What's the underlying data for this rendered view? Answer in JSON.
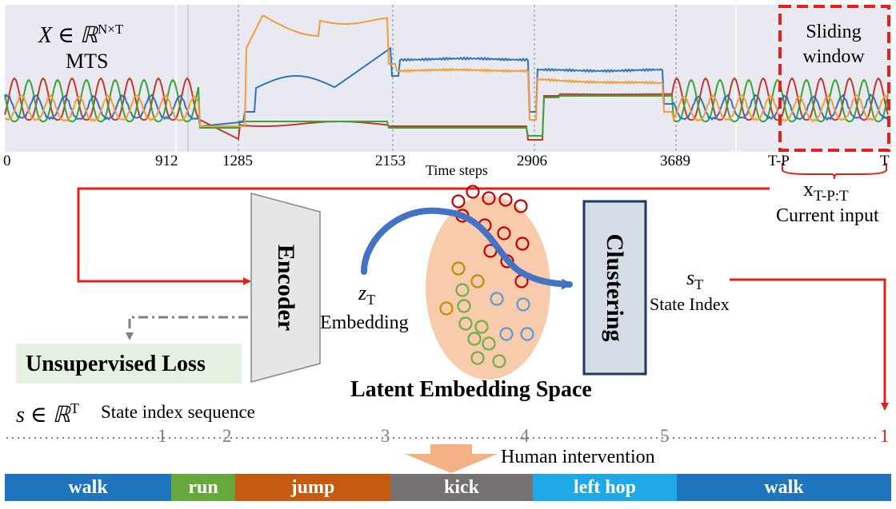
{
  "plot": {
    "math_label": "X ∈ ℝ",
    "math_sup": "N×T",
    "title": "MTS",
    "x_axis_label": "Time steps",
    "ticks": [
      "0",
      "912",
      "1285",
      "2153",
      "2906",
      "3689",
      "T-P",
      "T"
    ],
    "sliding_window": {
      "line1": "Sliding",
      "line2": "window"
    },
    "series_colors": {
      "blue": "#2e75b6",
      "orange": "#f39c3c",
      "red": "#c0392b",
      "green": "#3aa534"
    }
  },
  "current_input": {
    "symbol": "x",
    "subscript": "T-P:T",
    "caption": "Current input"
  },
  "encoder": {
    "label": "Encoder"
  },
  "embedding": {
    "symbol": "z",
    "subscript": "T",
    "caption": "Embedding"
  },
  "latent_space": {
    "title": "Latent Embedding Space"
  },
  "clustering": {
    "label": "Clustering"
  },
  "state": {
    "symbol": "s",
    "subscript": "T",
    "caption": "State Index"
  },
  "loss": {
    "label": "Unsupervised Loss"
  },
  "state_sequence": {
    "math": "s ∈ ℝ",
    "sup": "T",
    "caption": "State index sequence",
    "indices": [
      "1",
      "2",
      "3",
      "4",
      "5",
      "1"
    ]
  },
  "intervention": {
    "label": "Human intervention"
  },
  "segments": [
    {
      "label": "walk",
      "color": "#1f75bd"
    },
    {
      "label": "run",
      "color": "#67a83c"
    },
    {
      "label": "jump",
      "color": "#c55a11"
    },
    {
      "label": "kick",
      "color": "#767171"
    },
    {
      "label": "left hop",
      "color": "#1ea8e8"
    },
    {
      "label": "walk",
      "color": "#1f75bd"
    }
  ],
  "colors": {
    "arrow_red": "#e4201c",
    "arrow_blue": "#4472c4",
    "loss_bg": "#e7f1e1",
    "clustering_bg": "#d6dce5",
    "cluster_border": "#1f3864",
    "ellipse": "#f8cbad",
    "plot_bg": "#e9e9f1",
    "intervention_arrow": "#f4b183"
  }
}
